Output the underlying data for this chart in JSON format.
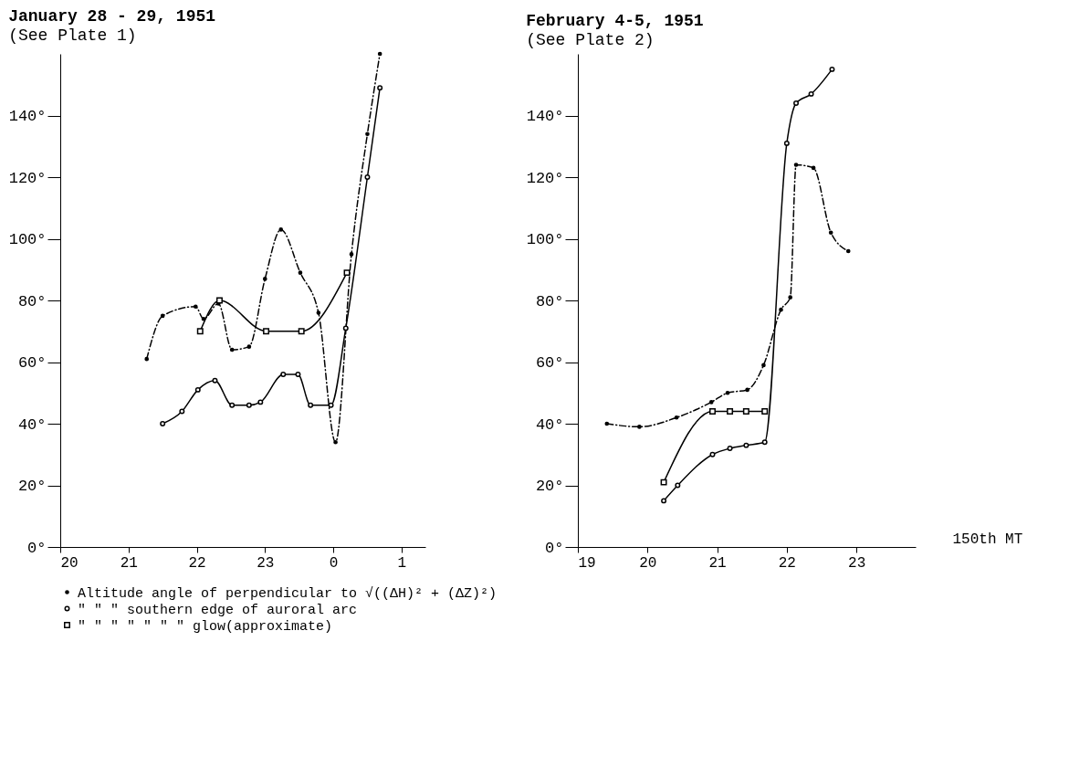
{
  "chart_data": [
    {
      "type": "line",
      "title": "January 28 - 29, 1951",
      "subtitle": "(See Plate 1)",
      "xlim": [
        "1951-01-28T20:00",
        "1951-01-29T01:21"
      ],
      "ylim": [
        0,
        160
      ],
      "xticks": [
        {
          "value": "1951-01-28T20:00",
          "label": "20"
        },
        {
          "value": "1951-01-28T21:00",
          "label": "21"
        },
        {
          "value": "1951-01-28T22:00",
          "label": "22"
        },
        {
          "value": "1951-01-28T23:00",
          "label": "23"
        },
        {
          "value": "1951-01-29T00:00",
          "label": "0"
        },
        {
          "value": "1951-01-29T01:00",
          "label": "1"
        }
      ],
      "yticks": [
        {
          "value": 0,
          "label": "0°"
        },
        {
          "value": 20,
          "label": "20°"
        },
        {
          "value": 40,
          "label": "40°"
        },
        {
          "value": 60,
          "label": "60°"
        },
        {
          "value": 80,
          "label": "80°"
        },
        {
          "value": 100,
          "label": "100°"
        },
        {
          "value": 120,
          "label": "120°"
        },
        {
          "value": 140,
          "label": "140°"
        }
      ],
      "grid": false,
      "legend": "bottom",
      "series": [
        {
          "name": "Altitude angle of perpendicular to √((ΔH)² + (ΔZ)²)",
          "color": "#000000",
          "marker": "circle",
          "line_style": "dashed",
          "x": [
            "1951-01-28T21:16",
            "1951-01-28T21:30",
            "1951-01-28T21:59",
            "1951-01-28T22:06",
            "1951-01-28T22:19",
            "1951-01-28T22:31",
            "1951-01-28T22:46",
            "1951-01-28T23:00",
            "1951-01-28T23:14",
            "1951-01-28T23:31",
            "1951-01-28T23:47",
            "1951-01-29T00:02",
            "1951-01-29T00:16",
            "1951-01-29T00:30",
            "1951-01-29T00:41"
          ],
          "values": [
            61,
            75,
            78,
            74,
            79,
            64,
            65,
            87,
            103,
            89,
            76,
            34,
            95,
            134,
            160
          ]
        },
        {
          "name": "\"  \"  \" southern edge of auroral arc",
          "color": "#000000",
          "marker": "circle",
          "line_style": "solid",
          "x": [
            "1951-01-28T21:30",
            "1951-01-28T21:47",
            "1951-01-28T22:01",
            "1951-01-28T22:16",
            "1951-01-28T22:31",
            "1951-01-28T22:46",
            "1951-01-28T22:56",
            "1951-01-28T23:16",
            "1951-01-28T23:29",
            "1951-01-28T23:40",
            "1951-01-28T23:58",
            "1951-01-29T00:11",
            "1951-01-29T00:30",
            "1951-01-29T00:41"
          ],
          "values": [
            40,
            44,
            51,
            54,
            46,
            46,
            47,
            56,
            56,
            46,
            46,
            71,
            120,
            149
          ]
        },
        {
          "name": "\"  \"  \"  \"  \"  \"  \" glow(approximate)",
          "color": "#000000",
          "marker": "square",
          "line_style": "solid",
          "x": [
            "1951-01-28T22:03",
            "1951-01-28T22:20",
            "1951-01-28T23:01",
            "1951-01-28T23:32",
            "1951-01-29T00:12"
          ],
          "values": [
            70,
            80,
            70,
            70,
            89
          ]
        }
      ]
    },
    {
      "type": "line",
      "title": "February 4-5, 1951",
      "subtitle": "(See Plate 2)",
      "xlabel": "150th MT",
      "xlim": [
        "1951-02-04T19:00",
        "1951-02-04T23:51"
      ],
      "ylim": [
        0,
        160
      ],
      "xticks": [
        {
          "value": "1951-02-04T19:00",
          "label": "19"
        },
        {
          "value": "1951-02-04T20:00",
          "label": "20"
        },
        {
          "value": "1951-02-04T21:00",
          "label": "21"
        },
        {
          "value": "1951-02-04T22:00",
          "label": "22"
        },
        {
          "value": "1951-02-04T23:00",
          "label": "23"
        }
      ],
      "yticks": [
        {
          "value": 0,
          "label": "0°"
        },
        {
          "value": 20,
          "label": "20°"
        },
        {
          "value": 40,
          "label": "40°"
        },
        {
          "value": 60,
          "label": "60°"
        },
        {
          "value": 80,
          "label": "80°"
        },
        {
          "value": 100,
          "label": "100°"
        },
        {
          "value": 120,
          "label": "120°"
        },
        {
          "value": 140,
          "label": "140°"
        }
      ],
      "grid": false,
      "legend": "bottom",
      "series": [
        {
          "name": "Altitude angle of perpendicular to √((ΔH)² + (ΔZ)²)",
          "color": "#000000",
          "marker": "circle",
          "line_style": "dashed",
          "x": [
            "1951-02-04T19:25",
            "1951-02-04T19:53",
            "1951-02-04T20:25",
            "1951-02-04T20:55",
            "1951-02-04T21:09",
            "1951-02-04T21:26",
            "1951-02-04T21:40",
            "1951-02-04T21:55",
            "1951-02-04T22:03",
            "1951-02-04T22:08",
            "1951-02-04T22:23",
            "1951-02-04T22:38",
            "1951-02-04T22:53"
          ],
          "values": [
            40,
            39,
            42,
            47,
            50,
            51,
            59,
            77,
            81,
            124,
            123,
            102,
            96
          ]
        },
        {
          "name": "\"  \"  \" southern edge of auroral arc",
          "color": "#000000",
          "marker": "circle",
          "line_style": "solid",
          "x": [
            "1951-02-04T20:14",
            "1951-02-04T20:26",
            "1951-02-04T20:56",
            "1951-02-04T21:11",
            "1951-02-04T21:25",
            "1951-02-04T21:41",
            "1951-02-04T22:00",
            "1951-02-04T22:08",
            "1951-02-04T22:21",
            "1951-02-04T22:39"
          ],
          "values": [
            15,
            20,
            30,
            32,
            33,
            34,
            131,
            144,
            147,
            155
          ]
        },
        {
          "name": "\"  \"  \"  \"  \"  \"  \" glow(approximate)",
          "color": "#000000",
          "marker": "square",
          "line_style": "solid",
          "x": [
            "1951-02-04T20:14",
            "1951-02-04T20:56",
            "1951-02-04T21:11",
            "1951-02-04T21:25",
            "1951-02-04T21:41"
          ],
          "values": [
            21,
            44,
            44,
            44,
            44
          ]
        }
      ]
    }
  ]
}
